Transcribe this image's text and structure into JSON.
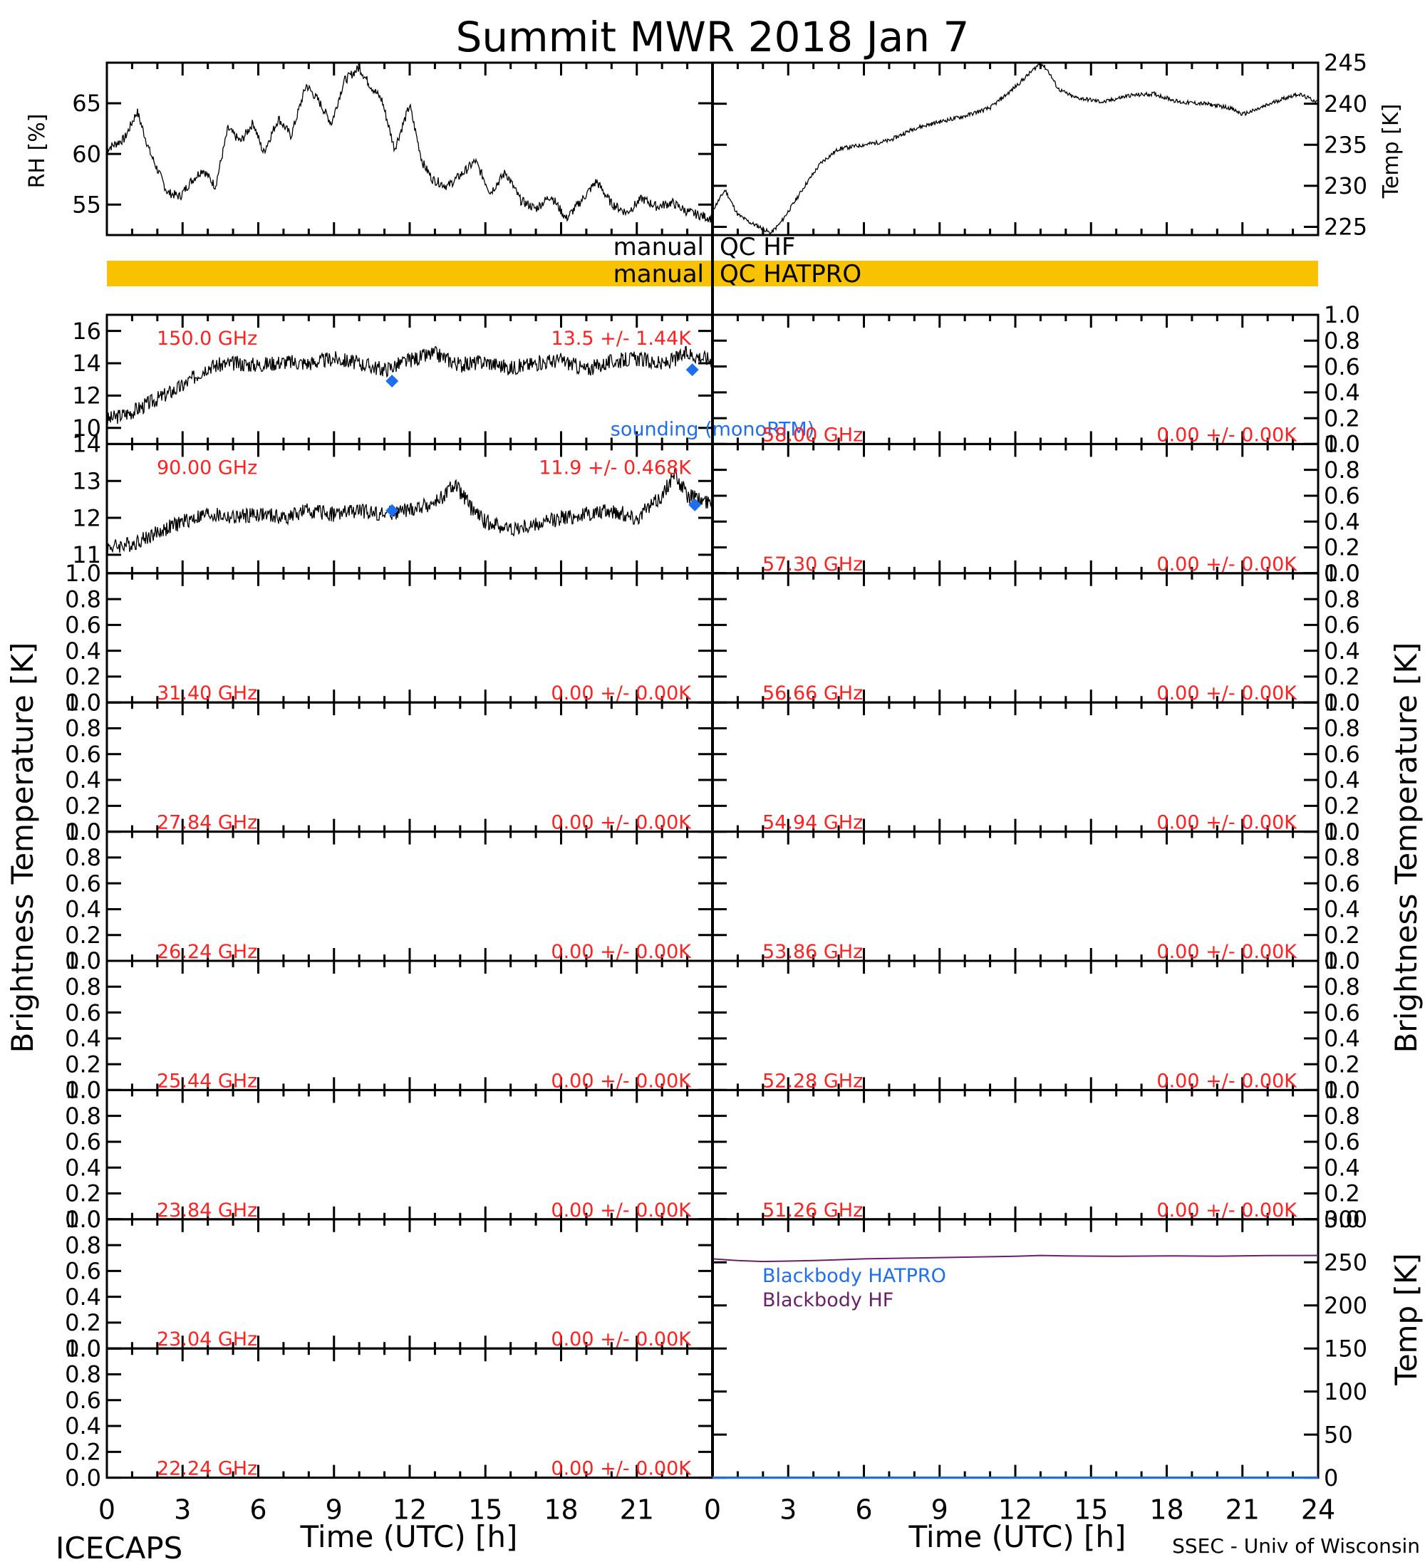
{
  "page": {
    "title": "Summit MWR 2018 Jan  7",
    "footer_left": "ICECAPS",
    "footer_right": "SSEC - Univ of Wisconsin"
  },
  "labels": {
    "rh_ylabel": "RH [%]",
    "temp_ylabel": "Temp [K]",
    "tb_ylabel_left": "Brightness Temperature [K]",
    "tb_ylabel_right": "Brightness Temperature [K]",
    "bb_ylabel": "Temp [K]",
    "xlabel_left": "Time (UTC) [h]",
    "xlabel_right": "Time (UTC) [h]"
  },
  "qc": {
    "hf_label": "manual QC HF",
    "hatpro_label": "manual QC HATPRO",
    "hatpro_color": "#f9c200"
  },
  "colors": {
    "trace": "#000000",
    "freq_label": "#ff2020",
    "sounding": "#1e6ff0",
    "bb_hf": "#6b1f6b",
    "bb_hatpro": "#1e6ff0"
  },
  "chart_data": [
    {
      "id": "rh",
      "type": "line",
      "ylabel": "RH [%]",
      "xlim": [
        0,
        24
      ],
      "ylim": [
        52,
        69
      ],
      "yticks": [
        55,
        60,
        65
      ],
      "series": [
        {
          "x": [
            0,
            0.7,
            1.2,
            1.7,
            2.4,
            2.9,
            3.3,
            3.8,
            4.3,
            4.8,
            5.3,
            5.8,
            6.2,
            6.8,
            7.3,
            7.9,
            8.4,
            8.9,
            9.4,
            10.0,
            10.4,
            10.9,
            11.4,
            12.0,
            12.5,
            12.9,
            13.5,
            14.1,
            14.6,
            15.2,
            15.8,
            16.4,
            17.0,
            17.6,
            18.2,
            18.8,
            19.4,
            20.0,
            20.6,
            21.2,
            21.8,
            22.4,
            23.0,
            24
          ],
          "y": [
            60.5,
            61.5,
            64.2,
            60.2,
            56.2,
            55.8,
            57.2,
            58.5,
            56.8,
            62.5,
            61.2,
            63.1,
            60.1,
            63.5,
            61.8,
            66.8,
            65.2,
            63.0,
            67.2,
            68.5,
            66.9,
            65.3,
            60.5,
            64.8,
            59.2,
            57.5,
            56.8,
            58.1,
            59.3,
            56.2,
            58.2,
            55.4,
            54.6,
            55.9,
            53.6,
            55.4,
            57.3,
            55.1,
            54.2,
            55.6,
            54.8,
            55.2,
            54.3,
            53.6
          ]
        }
      ]
    },
    {
      "id": "temp",
      "type": "line",
      "ylabel": "Temp [K]",
      "xlim": [
        0,
        24
      ],
      "ylim": [
        224,
        245
      ],
      "yticks": [
        225,
        230,
        235,
        240,
        245
      ],
      "series": [
        {
          "x": [
            0,
            0.5,
            1.0,
            1.5,
            2.0,
            2.3,
            2.7,
            3.2,
            3.7,
            4.3,
            5.0,
            6.0,
            7.0,
            8.0,
            9.0,
            10.0,
            11.0,
            11.8,
            12.5,
            13.0,
            13.3,
            13.7,
            14.3,
            15.5,
            16.5,
            17.5,
            18.5,
            19.5,
            20.5,
            21.0,
            21.5,
            22.5,
            23.2,
            24
          ],
          "y": [
            227.0,
            229.5,
            226.5,
            225.5,
            224.8,
            224.2,
            225.5,
            227.8,
            230.2,
            232.8,
            234.5,
            235.0,
            235.5,
            237.0,
            237.8,
            238.5,
            239.5,
            241.5,
            243.5,
            245.0,
            244.0,
            241.8,
            240.8,
            240.2,
            241.0,
            241.2,
            240.2,
            240.0,
            239.5,
            238.7,
            239.2,
            240.5,
            241.2,
            240.2
          ]
        }
      ]
    },
    {
      "id": "tb150",
      "type": "line",
      "channel": "150.0 GHz",
      "stats": "13.5 +/- 1.44K",
      "xlim": [
        0,
        24
      ],
      "ylim": [
        9,
        17
      ],
      "yticks": [
        10,
        12,
        14,
        16
      ],
      "series": [
        {
          "x": [
            0,
            1,
            2,
            3,
            4,
            5,
            6,
            7,
            8,
            9,
            10,
            11,
            12,
            13,
            14,
            15,
            16,
            17,
            18,
            19,
            20,
            21,
            22,
            23,
            24
          ],
          "y": [
            10.5,
            11.0,
            11.8,
            12.6,
            13.8,
            14.0,
            13.9,
            14.1,
            14.0,
            14.3,
            14.0,
            13.6,
            14.2,
            14.6,
            13.9,
            14.1,
            13.7,
            14.0,
            14.2,
            13.6,
            14.1,
            14.3,
            13.9,
            14.6,
            14.2
          ]
        }
      ],
      "sounding": {
        "label": "sounding (monoRTM)",
        "x": [
          11.3,
          23.2
        ],
        "y": [
          12.9,
          13.6
        ]
      }
    },
    {
      "id": "tb90",
      "type": "line",
      "channel": "90.00 GHz",
      "stats": "11.9 +/- 0.468K",
      "xlim": [
        0,
        24
      ],
      "ylim": [
        10.5,
        14
      ],
      "yticks": [
        11,
        12,
        13,
        14
      ],
      "series": [
        {
          "x": [
            0,
            1,
            2,
            3,
            4,
            5,
            6,
            7,
            8,
            9,
            10,
            11,
            12,
            13,
            13.8,
            14.5,
            15,
            16,
            17,
            18,
            19,
            20,
            21,
            22,
            22.5,
            23,
            24
          ],
          "y": [
            11.2,
            11.3,
            11.6,
            11.9,
            12.1,
            12.0,
            12.1,
            12.0,
            12.2,
            12.1,
            12.2,
            12.1,
            12.2,
            12.4,
            12.9,
            12.2,
            11.9,
            11.7,
            11.8,
            12.0,
            12.1,
            12.2,
            12.0,
            12.6,
            13.2,
            12.6,
            12.4
          ]
        }
      ],
      "sounding": {
        "x": [
          11.3,
          23.3
        ],
        "y": [
          12.2,
          12.35
        ]
      }
    },
    {
      "id": "tb3140",
      "type": "line",
      "channel": "31.40 GHz",
      "stats": "0.00 +/- 0.00K",
      "ylim": [
        0,
        1
      ]
    },
    {
      "id": "tb2784",
      "type": "line",
      "channel": "27.84 GHz",
      "stats": "0.00 +/- 0.00K",
      "ylim": [
        0,
        1
      ]
    },
    {
      "id": "tb2624",
      "type": "line",
      "channel": "26.24 GHz",
      "stats": "0.00 +/- 0.00K",
      "ylim": [
        0,
        1
      ]
    },
    {
      "id": "tb2544",
      "type": "line",
      "channel": "25.44 GHz",
      "stats": "0.00 +/- 0.00K",
      "ylim": [
        0,
        1
      ]
    },
    {
      "id": "tb2384",
      "type": "line",
      "channel": "23.84 GHz",
      "stats": "0.00 +/- 0.00K",
      "ylim": [
        0,
        1
      ]
    },
    {
      "id": "tb2304",
      "type": "line",
      "channel": "23.04 GHz",
      "stats": "0.00 +/- 0.00K",
      "ylim": [
        0,
        1
      ]
    },
    {
      "id": "tb2224",
      "type": "line",
      "channel": "22.24 GHz",
      "stats": "0.00 +/- 0.00K",
      "ylim": [
        0,
        1
      ]
    },
    {
      "id": "tb5800",
      "type": "line",
      "channel": "58.00 GHz",
      "stats": "0.00 +/- 0.00K",
      "ylim": [
        0,
        1
      ]
    },
    {
      "id": "tb5730",
      "type": "line",
      "channel": "57.30 GHz",
      "stats": "0.00 +/- 0.00K",
      "ylim": [
        0,
        1
      ]
    },
    {
      "id": "tb5666",
      "type": "line",
      "channel": "56.66 GHz",
      "stats": "0.00 +/- 0.00K",
      "ylim": [
        0,
        1
      ]
    },
    {
      "id": "tb5494",
      "type": "line",
      "channel": "54.94 GHz",
      "stats": "0.00 +/- 0.00K",
      "ylim": [
        0,
        1
      ]
    },
    {
      "id": "tb5386",
      "type": "line",
      "channel": "53.86 GHz",
      "stats": "0.00 +/- 0.00K",
      "ylim": [
        0,
        1
      ]
    },
    {
      "id": "tb5228",
      "type": "line",
      "channel": "52.28 GHz",
      "stats": "0.00 +/- 0.00K",
      "ylim": [
        0,
        1
      ]
    },
    {
      "id": "tb5126",
      "type": "line",
      "channel": "51.26 GHz",
      "stats": "0.00 +/- 0.00K",
      "ylim": [
        0,
        1
      ]
    },
    {
      "id": "blackbody",
      "type": "line",
      "ylabel": "Temp [K]",
      "xlim": [
        0,
        24
      ],
      "ylim": [
        0,
        300
      ],
      "yticks": [
        0,
        50,
        100,
        150,
        200,
        250,
        300
      ],
      "series": [
        {
          "name": "Blackbody HF",
          "x": [
            0,
            1,
            2,
            3,
            4,
            5,
            6,
            8,
            10,
            12,
            13,
            14,
            16,
            18,
            20,
            22,
            24
          ],
          "y": [
            254,
            252,
            251,
            251.5,
            252,
            253,
            254,
            255,
            256,
            257,
            258,
            257.5,
            257,
            257.5,
            257.2,
            257.8,
            258
          ]
        },
        {
          "name": "Blackbody HATPRO",
          "x": [
            0,
            24
          ],
          "y": [
            0,
            0
          ]
        }
      ]
    }
  ],
  "yticklabels_unit": [
    "0.0",
    "0.2",
    "0.4",
    "0.6",
    "0.8",
    "1.0"
  ],
  "xticklabels": [
    "0",
    "3",
    "6",
    "9",
    "12",
    "15",
    "18",
    "21",
    "24"
  ],
  "xticklabels_left": [
    "0",
    "3",
    "6",
    "9",
    "12",
    "15",
    "18",
    "21"
  ]
}
